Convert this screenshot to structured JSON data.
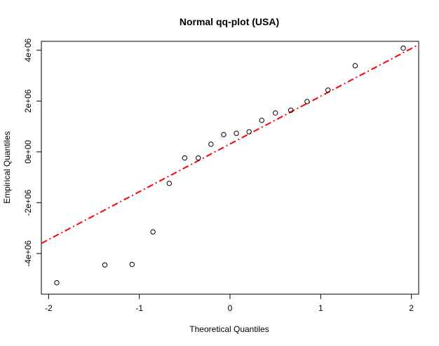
{
  "chart_data": {
    "type": "scatter",
    "title": "Normal qq-plot (USA)",
    "xlabel": "Theoretical Quantiles",
    "ylabel": "Empirical Quantiles",
    "xlim": [
      -2.08,
      2.08
    ],
    "ylim": [
      -5600000,
      4350000
    ],
    "x_ticks": [
      {
        "value": -2,
        "label": "-2"
      },
      {
        "value": -1,
        "label": "-1"
      },
      {
        "value": 0,
        "label": "0"
      },
      {
        "value": 1,
        "label": "1"
      },
      {
        "value": 2,
        "label": "2"
      }
    ],
    "y_ticks": [
      {
        "value": -4000000,
        "label": "-4e+06"
      },
      {
        "value": -2000000,
        "label": "-2e+06"
      },
      {
        "value": 0,
        "label": "0e+00"
      },
      {
        "value": 2000000,
        "label": "2e+06"
      },
      {
        "value": 4000000,
        "label": "4e+06"
      }
    ],
    "points": [
      {
        "x": -1.91,
        "y": -5150000
      },
      {
        "x": -1.38,
        "y": -4450000
      },
      {
        "x": -1.08,
        "y": -4430000
      },
      {
        "x": -0.85,
        "y": -3150000
      },
      {
        "x": -0.67,
        "y": -1240000
      },
      {
        "x": -0.5,
        "y": -240000
      },
      {
        "x": -0.35,
        "y": -240000
      },
      {
        "x": -0.21,
        "y": 300000
      },
      {
        "x": -0.07,
        "y": 680000
      },
      {
        "x": 0.07,
        "y": 730000
      },
      {
        "x": 0.21,
        "y": 790000
      },
      {
        "x": 0.35,
        "y": 1240000
      },
      {
        "x": 0.5,
        "y": 1530000
      },
      {
        "x": 0.67,
        "y": 1640000
      },
      {
        "x": 0.85,
        "y": 1980000
      },
      {
        "x": 1.08,
        "y": 2430000
      },
      {
        "x": 1.38,
        "y": 3390000
      },
      {
        "x": 1.91,
        "y": 4080000
      }
    ],
    "reference_line": {
      "intercept": 310000,
      "slope": 1880000,
      "color": "#ff0000",
      "style": "dash-dot"
    },
    "point_color": "#000000",
    "grid": false,
    "legend": "none"
  }
}
